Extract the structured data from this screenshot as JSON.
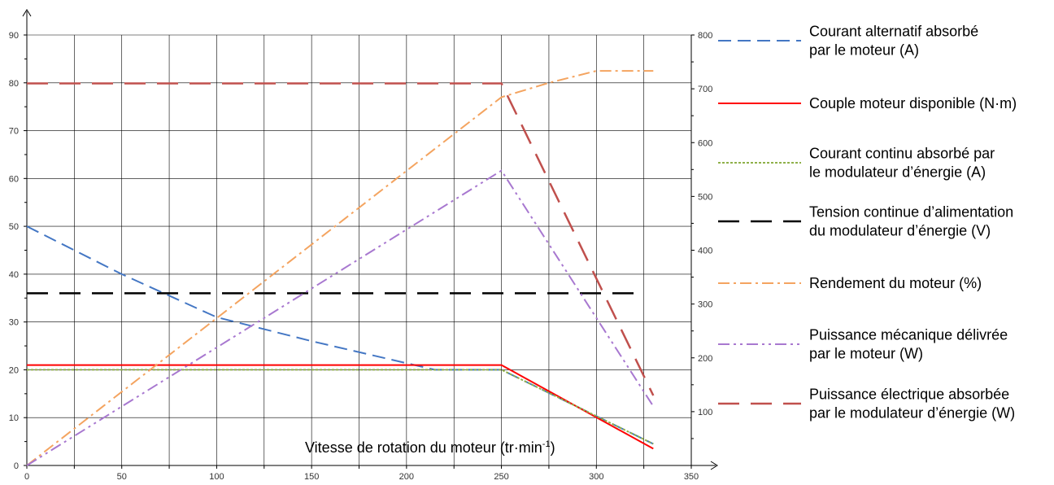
{
  "chart_data": {
    "type": "line",
    "title": "",
    "xlabel": "Vitesse de rotation du moteur (tr·min",
    "xlabel_sup": "-1",
    "ylabel": "",
    "ylabel_right": "",
    "xlim": [
      0,
      350
    ],
    "ylim": [
      0,
      90
    ],
    "ylim_right": [
      0,
      800
    ],
    "x_ticks": [
      "0",
      "50",
      "100",
      "150",
      "200",
      "250",
      "300",
      "350"
    ],
    "y_ticks": [
      "0",
      "10",
      "20",
      "30",
      "40",
      "50",
      "60",
      "70",
      "80",
      "90"
    ],
    "y_ticks_right": [
      "100",
      "200",
      "300",
      "400",
      "500",
      "600",
      "700",
      "800"
    ],
    "grid": true,
    "legend_position": "right",
    "series": [
      {
        "name": "Courant alternatif absorbé par le moteur (A)",
        "legend_lines": [
          "Courant alternatif absorbé",
          "par le moteur (A)"
        ],
        "color": "#4477c4",
        "style": "dashed",
        "axis": "left",
        "x": [
          0,
          50,
          100,
          150,
          215,
          250,
          330
        ],
        "y": [
          50,
          40,
          31,
          26,
          20,
          20,
          4.5
        ]
      },
      {
        "name": "Couple moteur disponible (N·m)",
        "legend_lines": [
          "Couple moteur disponible (N·m)"
        ],
        "color": "#ff0000",
        "style": "solid",
        "axis": "left",
        "x": [
          0,
          250,
          330
        ],
        "y": [
          21,
          21,
          3.5
        ]
      },
      {
        "name": "Courant continu absorbé par le modulateur d'énergie (A)",
        "legend_lines": [
          "Courant continu absorbé par",
          "le modulateur d’énergie (A)"
        ],
        "color": "#8fb04a",
        "style": "dotted",
        "axis": "left",
        "x": [
          0,
          250,
          330
        ],
        "y": [
          20,
          20,
          4.5
        ]
      },
      {
        "name": "Tension continue d'alimentation du modulateur d'énergie (V)",
        "legend_lines": [
          "Tension continue d’alimentation",
          "du modulateur d’énergie (V)"
        ],
        "color": "#000000",
        "style": "longdash",
        "axis": "left",
        "x": [
          0,
          325
        ],
        "y": [
          36,
          36
        ]
      },
      {
        "name": "Rendement du moteur (%)",
        "legend_lines": [
          "Rendement du moteur (%)"
        ],
        "color": "#f4a460",
        "style": "dashdot",
        "axis": "left",
        "x": [
          0,
          250,
          275,
          300,
          330
        ],
        "y": [
          0,
          77,
          80,
          82.5,
          82.5
        ]
      },
      {
        "name": "Puissance mécanique délivrée par le moteur (W)",
        "legend_lines": [
          "Puissance mécanique délivrée",
          "par le moteur (W)"
        ],
        "color": "#a878d0",
        "style": "dashdotdot",
        "axis": "right",
        "x": [
          0,
          250,
          330
        ],
        "y": [
          0,
          548,
          110
        ]
      },
      {
        "name": "Puissance électrique absorbée par le modulateur d'énergie (W)",
        "legend_lines": [
          "Puissance électrique absorbée",
          "par le modulateur d’énergie (W)"
        ],
        "color": "#c0504d",
        "style": "longdash",
        "axis": "right",
        "x": [
          0,
          250,
          330
        ],
        "y": [
          710,
          710,
          130
        ]
      }
    ]
  }
}
